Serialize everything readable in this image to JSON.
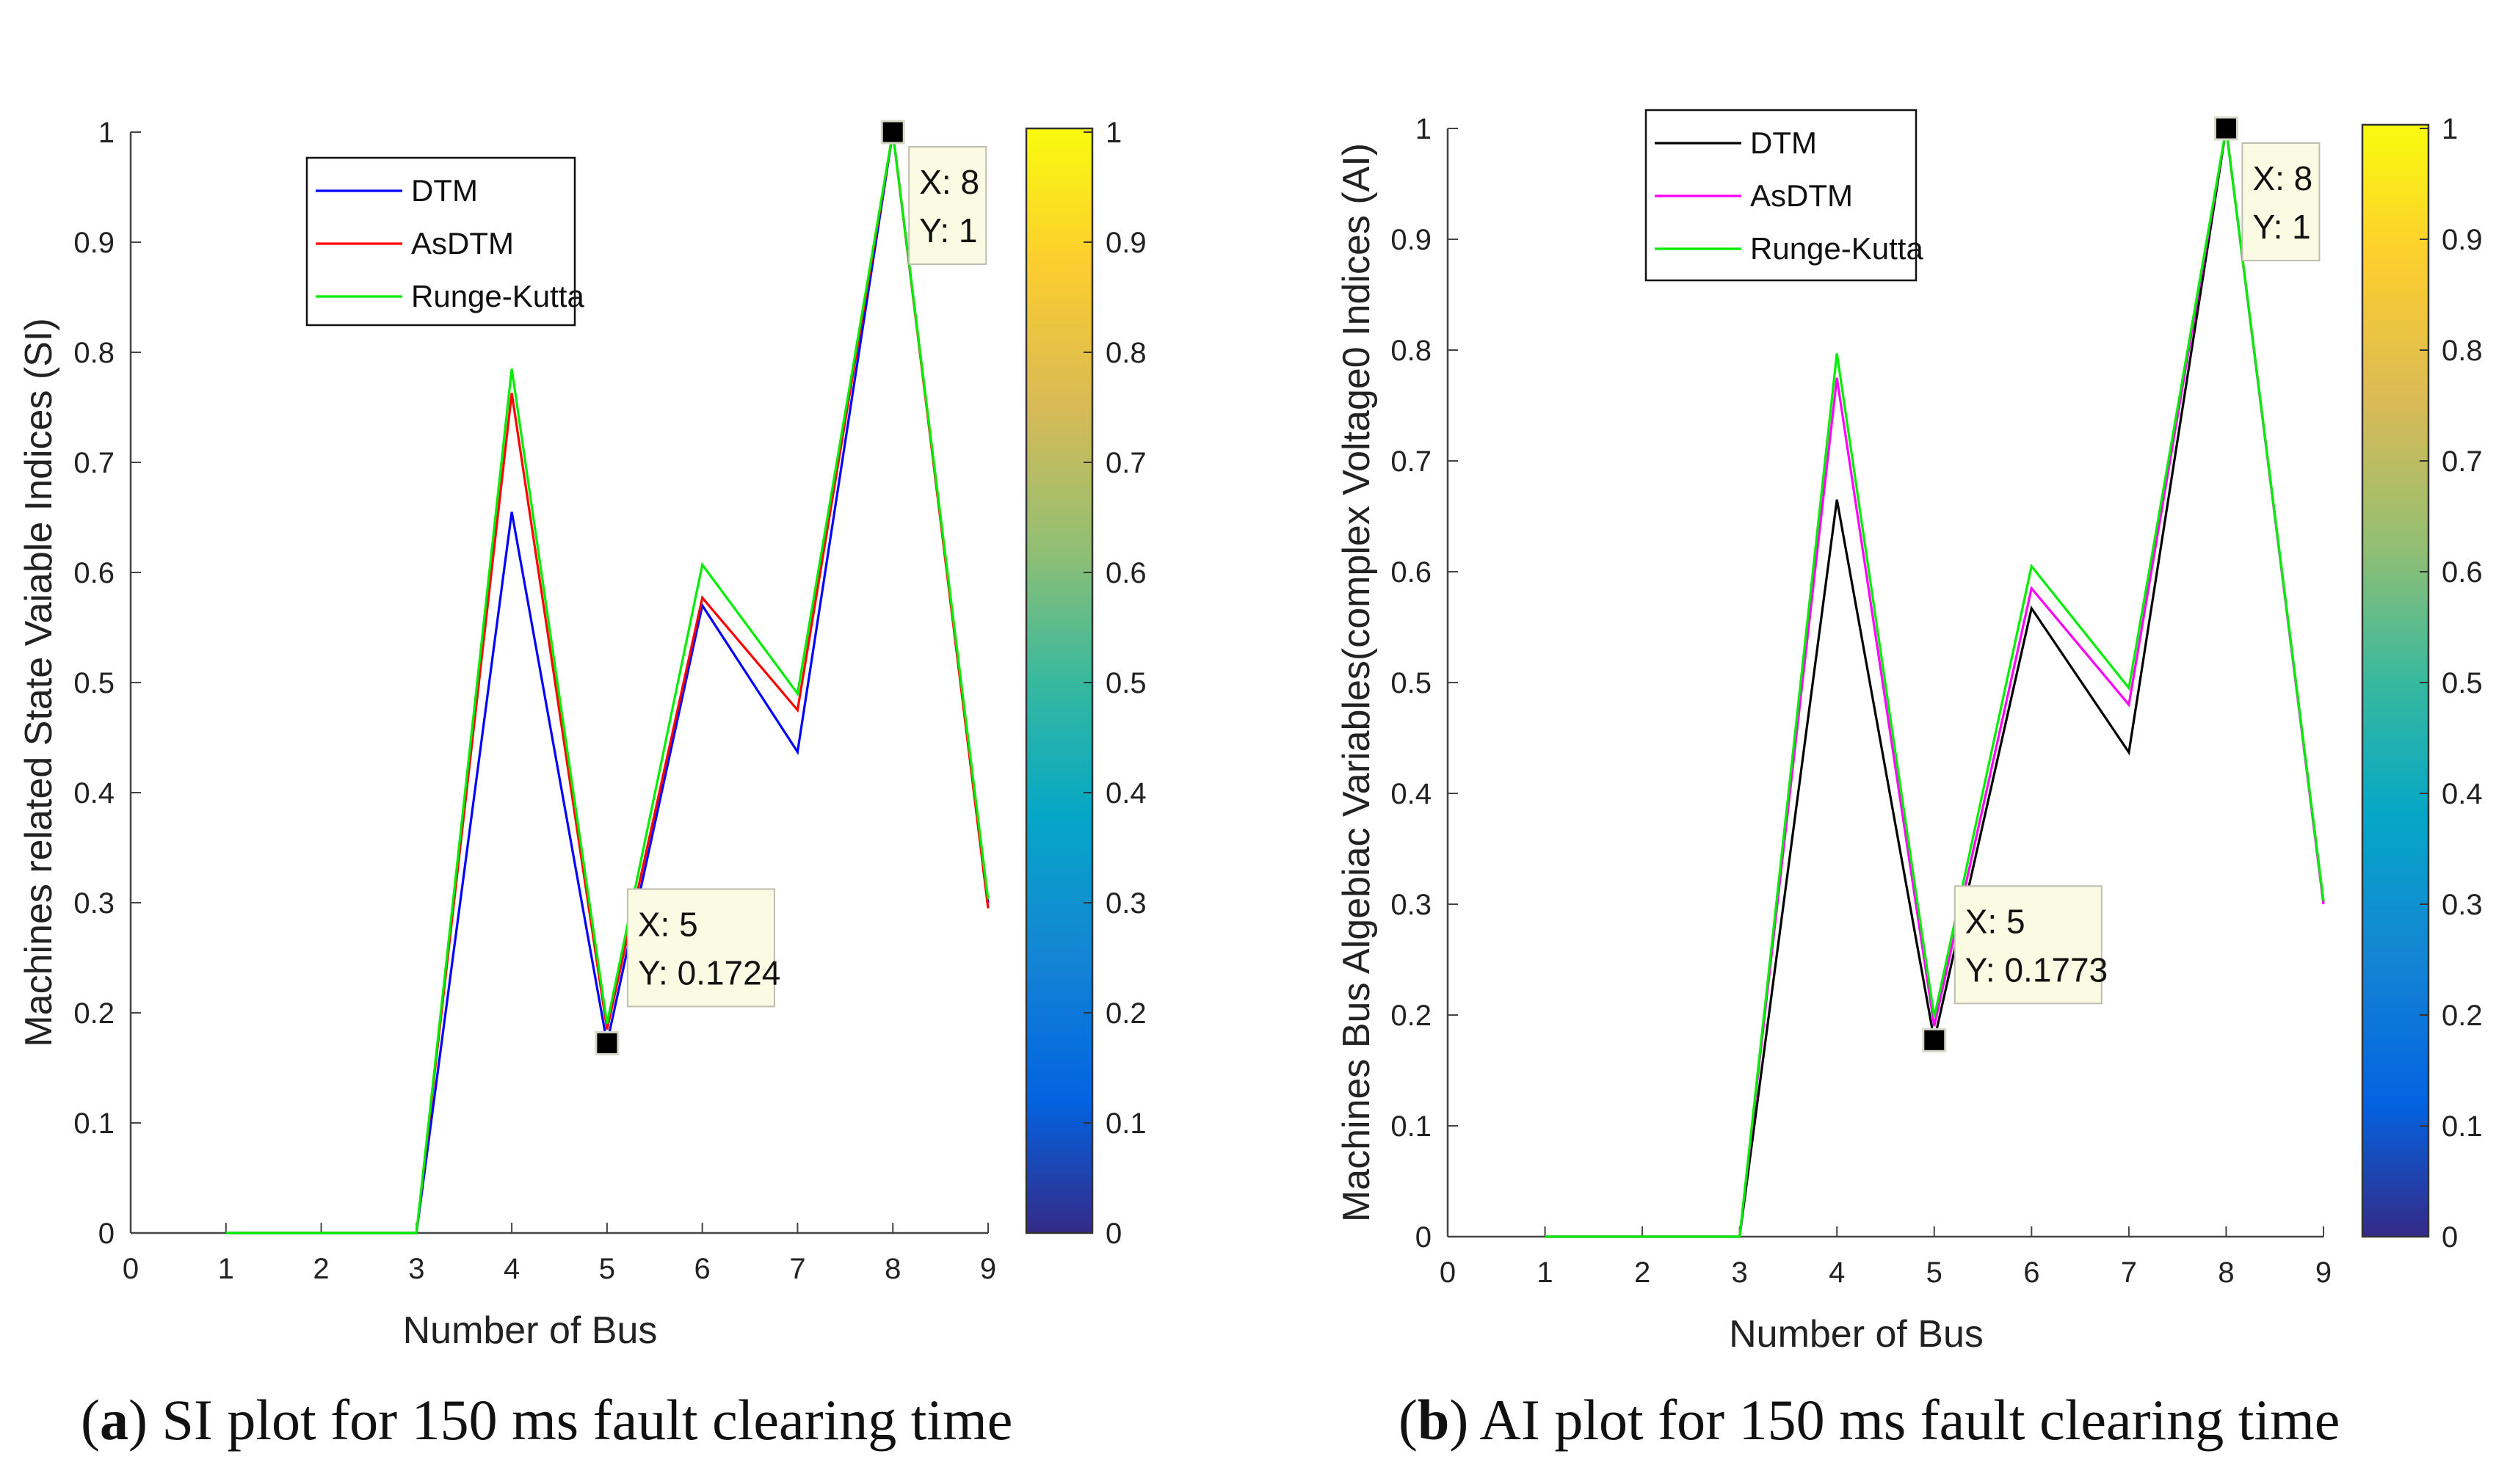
{
  "chart_data": [
    {
      "type": "line",
      "panel": "a",
      "caption_letter": "a",
      "caption_text": "SI plot for 150 ms fault clearing time",
      "xlabel": "Number of Bus",
      "ylabel": "Machines related State Vaiable Indices (SI)",
      "xlim": [
        0,
        9
      ],
      "ylim": [
        0,
        1
      ],
      "xticks": [
        "0",
        "1",
        "2",
        "3",
        "4",
        "5",
        "6",
        "7",
        "8",
        "9"
      ],
      "yticks": [
        "0",
        "0.1",
        "0.2",
        "0.3",
        "0.4",
        "0.5",
        "0.6",
        "0.7",
        "0.8",
        "0.9",
        "1"
      ],
      "x": [
        1,
        2,
        3,
        4,
        5,
        6,
        7,
        8,
        9
      ],
      "series": [
        {
          "name": "DTM",
          "color": "#0000ff",
          "values": [
            0,
            0,
            0,
            0.655,
            0.1724,
            0.57,
            0.437,
            1,
            0.3
          ]
        },
        {
          "name": "AsDTM",
          "color": "#ff0000",
          "values": [
            0,
            0,
            0,
            0.763,
            0.185,
            0.577,
            0.475,
            1,
            0.295
          ]
        },
        {
          "name": "Runge-Kutta",
          "color": "#00ee00",
          "values": [
            0,
            0,
            0,
            0.785,
            0.19,
            0.607,
            0.49,
            1,
            0.303
          ]
        }
      ],
      "datatips": [
        {
          "x": 5,
          "y": 0.1724,
          "xtext": "X: 5",
          "ytext": "Y: 0.1724",
          "side": "lower"
        },
        {
          "x": 8,
          "y": 1,
          "xtext": "X: 8",
          "ytext": "Y: 1",
          "side": "upper"
        }
      ],
      "colorbar": {
        "ticks": [
          "0",
          "0.1",
          "0.2",
          "0.3",
          "0.4",
          "0.5",
          "0.6",
          "0.7",
          "0.8",
          "0.9",
          "1"
        ]
      }
    },
    {
      "type": "line",
      "panel": "b",
      "caption_letter": "b",
      "caption_text": "AI plot for 150 ms fault clearing time",
      "xlabel": "Number of Bus",
      "ylabel": "Machines Bus Algebiac Variables(complex Voltage0 Indices (AI)",
      "xlim": [
        0,
        9
      ],
      "ylim": [
        0,
        1
      ],
      "xticks": [
        "0",
        "1",
        "2",
        "3",
        "4",
        "5",
        "6",
        "7",
        "8",
        "9"
      ],
      "yticks": [
        "0",
        "0.1",
        "0.2",
        "0.3",
        "0.4",
        "0.5",
        "0.6",
        "0.7",
        "0.8",
        "0.9",
        "1"
      ],
      "x": [
        1,
        2,
        3,
        4,
        5,
        6,
        7,
        8,
        9
      ],
      "series": [
        {
          "name": "DTM",
          "color": "#000000",
          "values": [
            0,
            0,
            0,
            0.665,
            0.1773,
            0.567,
            0.437,
            1,
            0.302
          ]
        },
        {
          "name": "AsDTM",
          "color": "#ff00ff",
          "values": [
            0,
            0,
            0,
            0.775,
            0.19,
            0.585,
            0.48,
            1,
            0.3
          ]
        },
        {
          "name": "Runge-Kutta",
          "color": "#00ee00",
          "values": [
            0,
            0,
            0,
            0.797,
            0.198,
            0.605,
            0.495,
            1,
            0.303
          ]
        }
      ],
      "datatips": [
        {
          "x": 5,
          "y": 0.1773,
          "xtext": "X: 5",
          "ytext": "Y: 0.1773",
          "side": "lower"
        },
        {
          "x": 8,
          "y": 1,
          "xtext": "X: 8",
          "ytext": "Y: 1",
          "side": "upper"
        }
      ],
      "colorbar": {
        "ticks": [
          "0",
          "0.1",
          "0.2",
          "0.3",
          "0.4",
          "0.5",
          "0.6",
          "0.7",
          "0.8",
          "0.9",
          "1"
        ]
      }
    }
  ]
}
